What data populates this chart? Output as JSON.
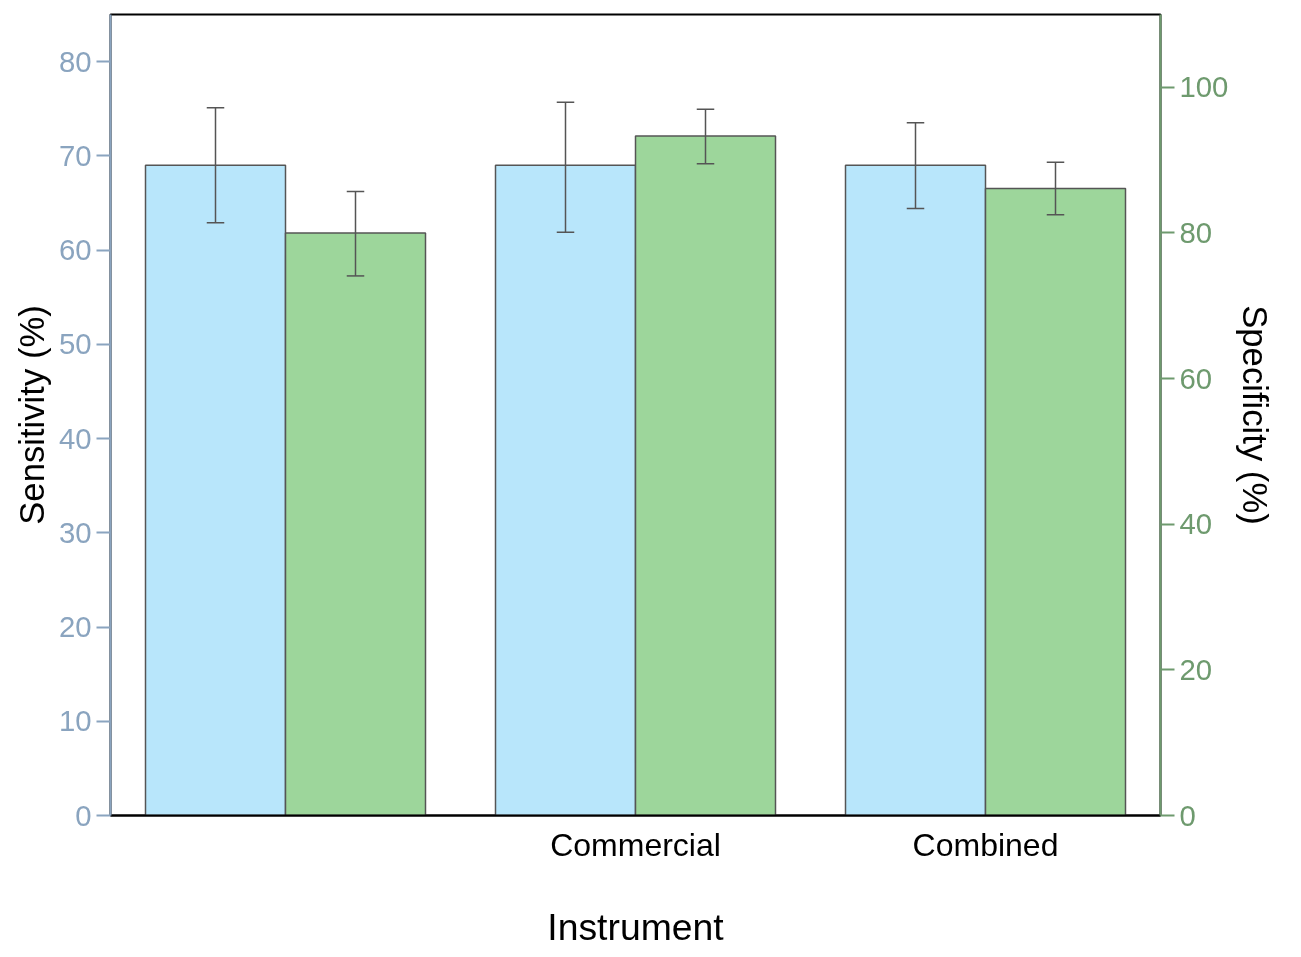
{
  "chart_data": {
    "type": "bar",
    "xlabel": "Instrument",
    "ylabel": "Sensitivity (%)",
    "y2label": "Specificity (%)",
    "categories": [
      null,
      "Commercial",
      "Combined"
    ],
    "series": [
      {
        "color": "#b8e6fb",
        "values": [
          69,
          69,
          69
        ],
        "errors": [
          [
            62.9,
            75.1
          ],
          [
            61.9,
            75.7
          ],
          [
            64.4,
            73.5
          ]
        ]
      },
      {
        "color": "#9dd69b",
        "axis": "y2",
        "values": [
          80,
          93.3,
          86.1
        ],
        "errors": [
          [
            74.1,
            85.7
          ],
          [
            89.5,
            97
          ],
          [
            82.5,
            89.7
          ]
        ]
      }
    ],
    "ylim": [
      0,
      85
    ],
    "yticks": [
      0,
      10,
      20,
      30,
      40,
      50,
      60,
      70,
      80
    ],
    "y2lim": [
      0,
      110
    ],
    "y2ticks": [
      0,
      20,
      40,
      60,
      80,
      100
    ],
    "grid": false
  }
}
